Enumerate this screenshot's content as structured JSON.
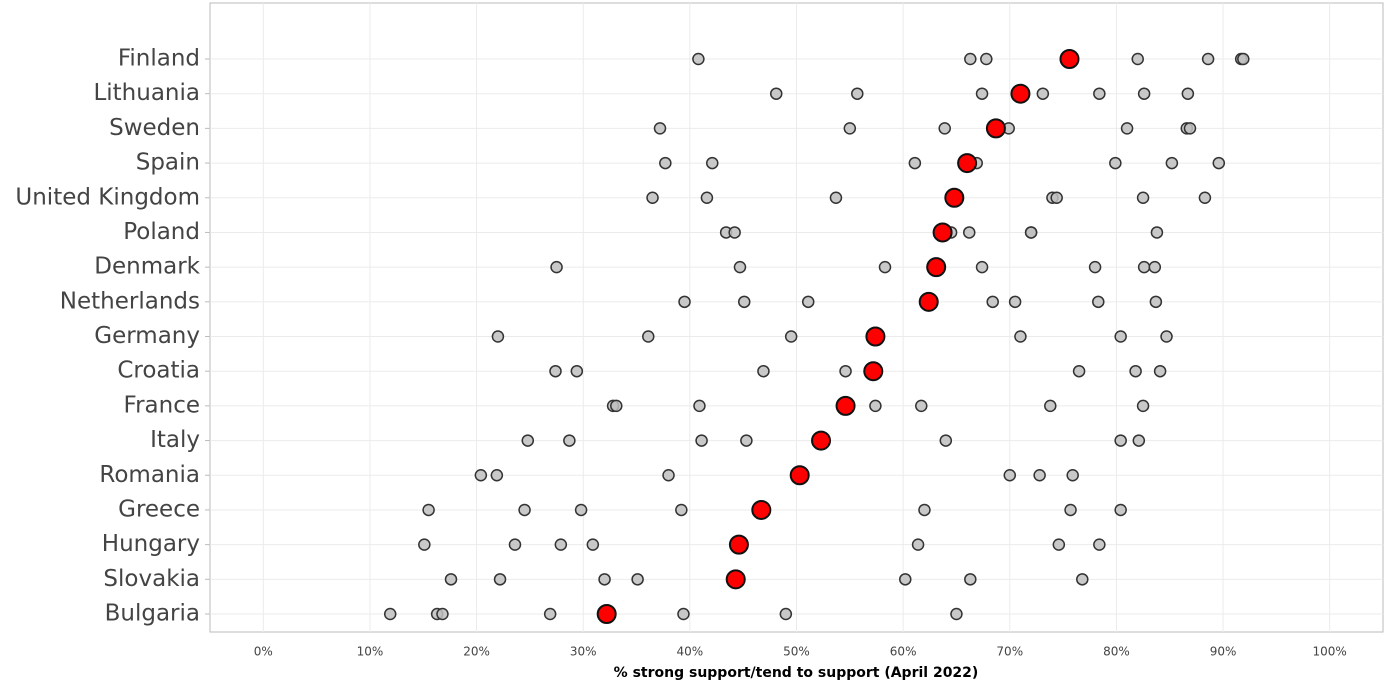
{
  "chart_data": {
    "type": "dot",
    "xlabel": "% strong support/tend to support (April 2022)",
    "categories": [
      "Finland",
      "Lithuania",
      "Sweden",
      "Spain",
      "United Kingdom",
      "Poland",
      "Denmark",
      "Netherlands",
      "Germany",
      "Croatia",
      "France",
      "Italy",
      "Romania",
      "Greece",
      "Hungary",
      "Slovakia",
      "Bulgaria"
    ],
    "values": [
      75.6,
      71.0,
      68.7,
      66.0,
      64.8,
      63.7,
      63.1,
      62.4,
      57.4,
      57.2,
      54.6,
      52.3,
      50.3,
      46.7,
      44.6,
      44.3,
      32.2
    ],
    "color": "#ff0000",
    "others": [
      [
        40.8,
        66.3,
        67.8,
        82.0,
        88.6,
        91.7,
        91.9
      ],
      [
        48.1,
        55.7,
        67.4,
        73.1,
        78.4,
        82.6,
        86.7
      ],
      [
        37.2,
        55.0,
        63.9,
        69.9,
        81.0,
        86.6,
        86.9
      ],
      [
        37.7,
        42.1,
        61.1,
        66.9,
        79.9,
        85.2,
        89.6
      ],
      [
        36.5,
        41.6,
        53.7,
        74.0,
        74.4,
        82.5,
        88.3
      ],
      [
        43.4,
        44.2,
        64.5,
        66.2,
        72.0,
        72.0,
        83.8
      ],
      [
        27.5,
        44.7,
        58.3,
        67.4,
        78.0,
        82.6,
        83.6
      ],
      [
        39.5,
        45.1,
        51.1,
        68.4,
        70.5,
        78.3,
        83.7
      ],
      [
        22.0,
        36.1,
        49.5,
        57.6,
        71.0,
        80.4,
        84.7
      ],
      [
        27.4,
        29.4,
        46.9,
        54.6,
        76.5,
        81.8,
        84.1
      ],
      [
        32.8,
        33.1,
        40.9,
        57.4,
        61.7,
        73.8,
        82.5
      ],
      [
        24.8,
        28.7,
        41.1,
        45.3,
        64.0,
        80.4,
        82.1
      ],
      [
        20.4,
        21.9,
        38.0,
        70.0,
        72.8,
        75.9
      ],
      [
        15.5,
        24.5,
        29.8,
        39.2,
        62.0,
        75.7,
        80.4
      ],
      [
        15.1,
        23.6,
        27.9,
        30.9,
        61.4,
        74.6,
        78.4
      ],
      [
        17.6,
        22.2,
        32.0,
        35.1,
        60.2,
        66.3,
        76.8
      ],
      [
        11.9,
        16.3,
        16.8,
        26.9,
        39.4,
        49.0,
        65.0
      ]
    ],
    "others_color": "#c0c0c0",
    "xlim": [
      -5,
      105
    ],
    "xticks": [
      {
        "value": 0,
        "label": "0%"
      },
      {
        "value": 10,
        "label": "10%"
      },
      {
        "value": 20,
        "label": "20%"
      },
      {
        "value": 30,
        "label": "30%"
      },
      {
        "value": 40,
        "label": "40%"
      },
      {
        "value": 50,
        "label": "50%"
      },
      {
        "value": 60,
        "label": "60%"
      },
      {
        "value": 70,
        "label": "70%"
      },
      {
        "value": 80,
        "label": "80%"
      },
      {
        "value": 90,
        "label": "90%"
      },
      {
        "value": 100,
        "label": "100%"
      }
    ],
    "grid": true
  }
}
